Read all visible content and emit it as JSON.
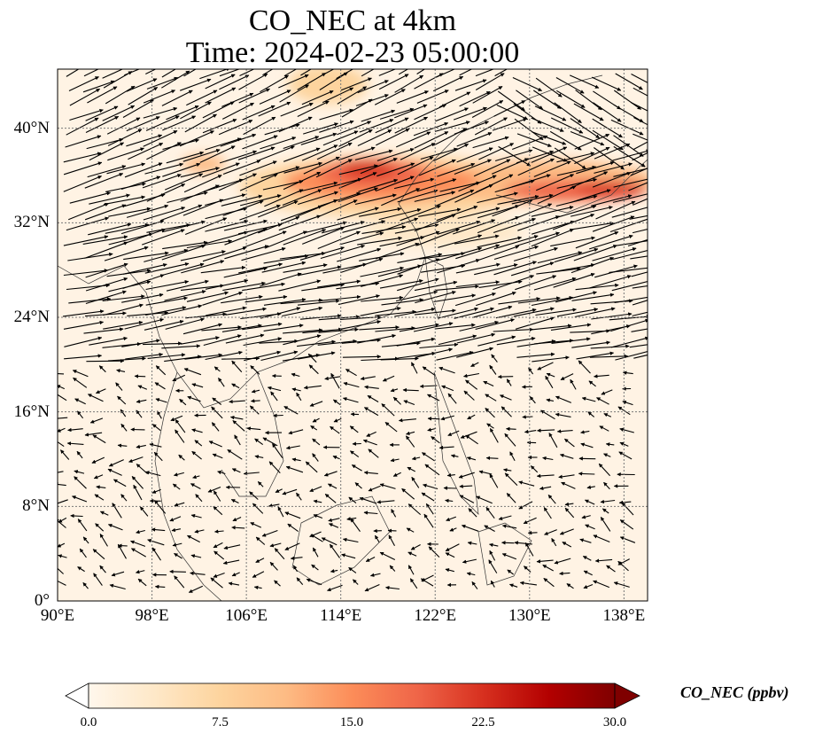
{
  "title": {
    "line1": "CO_NEC at 4km",
    "line2": "Time: 2024-02-23 05:00:00"
  },
  "map": {
    "lon_range": [
      90,
      140
    ],
    "lat_range": [
      0,
      45
    ],
    "lon_ticks": [
      {
        "value": 90,
        "label": "90°E"
      },
      {
        "value": 98,
        "label": "98°E"
      },
      {
        "value": 106,
        "label": "106°E"
      },
      {
        "value": 114,
        "label": "114°E"
      },
      {
        "value": 122,
        "label": "122°E"
      },
      {
        "value": 130,
        "label": "130°E"
      },
      {
        "value": 138,
        "label": "138°E"
      }
    ],
    "lat_ticks": [
      {
        "value": 0,
        "label": "0°"
      },
      {
        "value": 8,
        "label": "8°N"
      },
      {
        "value": 16,
        "label": "16°N"
      },
      {
        "value": 24,
        "label": "24°N"
      },
      {
        "value": 32,
        "label": "32°N"
      },
      {
        "value": 40,
        "label": "40°N"
      }
    ],
    "gridlines": true,
    "field_colormap": "OrRd",
    "wind_vectors": true
  },
  "colorbar": {
    "label": "CO_NEC (ppbv)",
    "min": 0.0,
    "max": 30.0,
    "extend": "both",
    "ticks": [
      "0.0",
      "7.5",
      "15.0",
      "22.5",
      "30.0"
    ],
    "colors": [
      "#fff7ec",
      "#fee8c8",
      "#fdd49e",
      "#fdbb84",
      "#fc8d59",
      "#ef6548",
      "#d7301f",
      "#b30000",
      "#7f0000"
    ]
  }
}
